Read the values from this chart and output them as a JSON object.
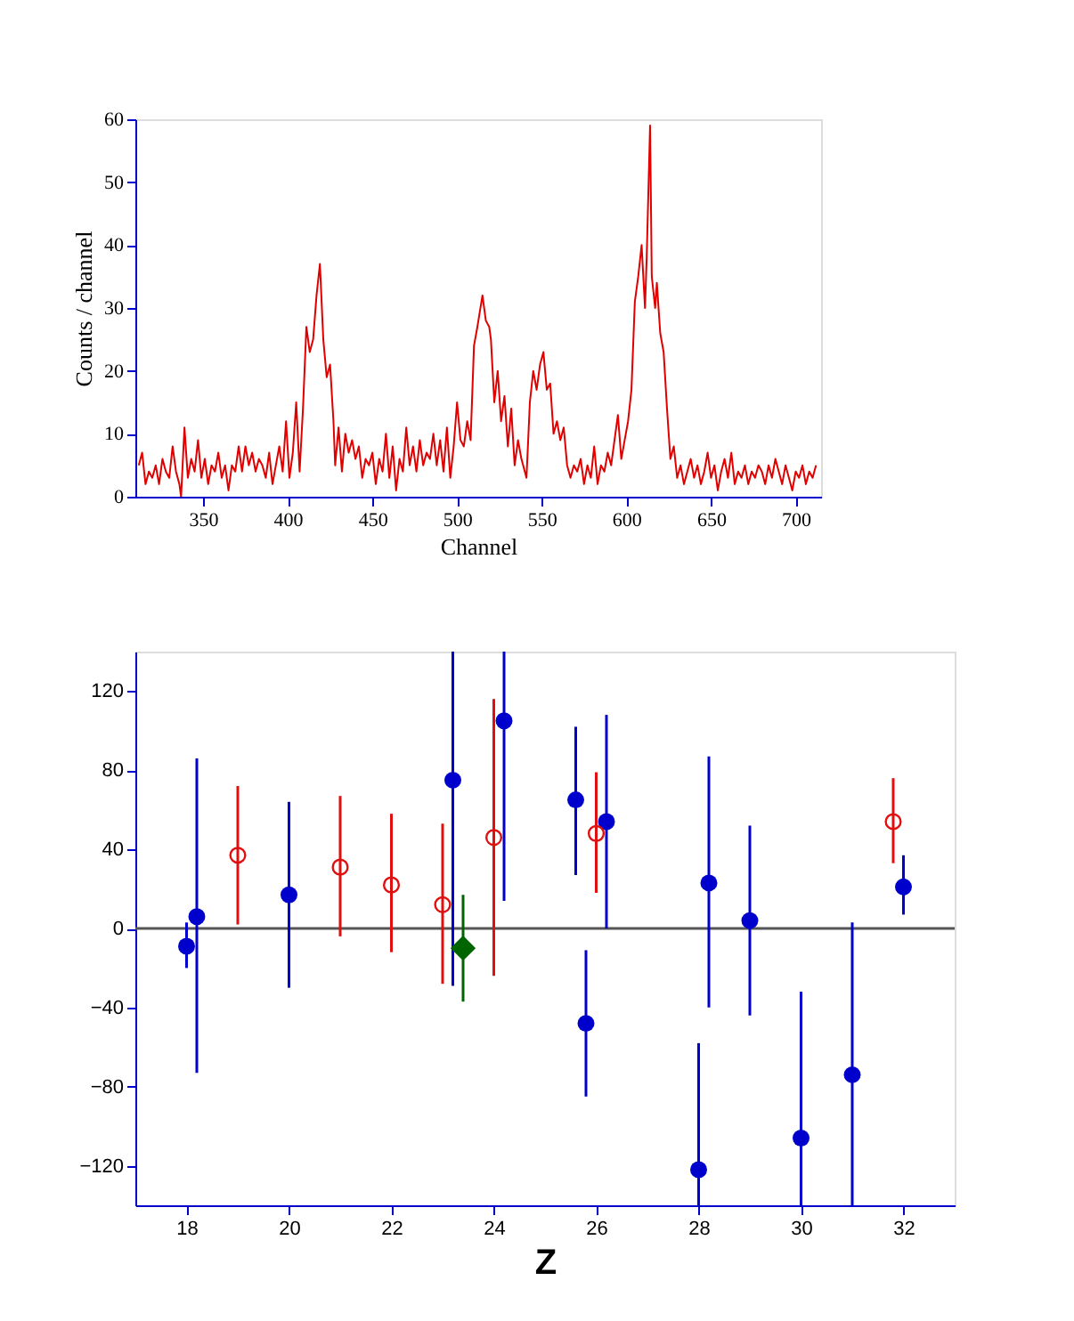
{
  "chart_data": [
    {
      "type": "line",
      "xlabel": "Channel",
      "ylabel": "Counts / channel",
      "xlim": [
        310,
        715
      ],
      "ylim": [
        0,
        60
      ],
      "xticks": [
        350,
        400,
        450,
        500,
        550,
        600,
        650,
        700
      ],
      "yticks": [
        0,
        10,
        20,
        30,
        40,
        50,
        60
      ],
      "grid": false,
      "marker": "none",
      "line_style": "solid",
      "series": [
        {
          "color": "#e00000",
          "x": [
            312,
            314,
            316,
            318,
            320,
            322,
            324,
            326,
            328,
            330,
            332,
            334,
            336,
            337,
            339,
            341,
            343,
            345,
            347,
            349,
            351,
            353,
            355,
            357,
            359,
            361,
            363,
            365,
            367,
            369,
            371,
            373,
            375,
            377,
            379,
            381,
            383,
            385,
            387,
            389,
            391,
            393,
            395,
            397,
            399,
            401,
            403,
            405,
            407,
            409,
            411,
            413,
            415,
            417,
            419,
            421,
            423,
            425,
            427,
            428,
            430,
            432,
            434,
            436,
            438,
            440,
            442,
            444,
            446,
            448,
            450,
            452,
            454,
            456,
            458,
            460,
            462,
            464,
            466,
            468,
            470,
            472,
            474,
            476,
            478,
            480,
            482,
            484,
            486,
            488,
            490,
            492,
            494,
            496,
            498,
            500,
            502,
            504,
            506,
            508,
            510,
            512,
            515,
            517,
            519,
            520,
            522,
            524,
            526,
            528,
            530,
            532,
            534,
            536,
            538,
            541,
            543,
            545,
            547,
            549,
            551,
            553,
            555,
            557,
            559,
            561,
            563,
            565,
            567,
            569,
            571,
            573,
            575,
            577,
            579,
            581,
            583,
            585,
            587,
            589,
            591,
            593,
            595,
            597,
            599,
            601,
            603,
            605,
            607,
            609,
            611,
            612,
            614,
            615,
            617,
            618,
            620,
            622,
            624,
            626,
            628,
            630,
            632,
            634,
            636,
            638,
            640,
            642,
            644,
            646,
            648,
            650,
            652,
            654,
            656,
            658,
            660,
            662,
            664,
            666,
            668,
            670,
            672,
            674,
            676,
            678,
            680,
            682,
            684,
            686,
            688,
            690,
            692,
            694,
            696,
            698,
            700,
            702,
            704,
            706,
            708,
            710,
            712
          ],
          "values": [
            5,
            7,
            2,
            4,
            3,
            5,
            2,
            6,
            4,
            3,
            8,
            4,
            2,
            0,
            11,
            3,
            6,
            4,
            9,
            3,
            6,
            2,
            5,
            4,
            7,
            3,
            5,
            1,
            5,
            4,
            8,
            4,
            8,
            5,
            7,
            4,
            6,
            5,
            3,
            7,
            2,
            5,
            8,
            4,
            12,
            3,
            7,
            15,
            4,
            14,
            27,
            23,
            25,
            32,
            37,
            25,
            19,
            21,
            12,
            5,
            11,
            4,
            10,
            7,
            9,
            6,
            8,
            3,
            6,
            5,
            7,
            2,
            6,
            4,
            10,
            3,
            8,
            1,
            6,
            4,
            11,
            5,
            8,
            4,
            9,
            5,
            7,
            6,
            10,
            5,
            9,
            4,
            11,
            3,
            8,
            15,
            9,
            8,
            12,
            9,
            24,
            27,
            32,
            28,
            27,
            25,
            15,
            20,
            12,
            16,
            8,
            14,
            5,
            9,
            6,
            3,
            15,
            20,
            17,
            21,
            23,
            17,
            18,
            10,
            12,
            9,
            11,
            5,
            3,
            5,
            4,
            6,
            2,
            5,
            3,
            8,
            2,
            5,
            4,
            7,
            5,
            9,
            13,
            6,
            9,
            12,
            17,
            31,
            35,
            40,
            30,
            38,
            59,
            35,
            30,
            34,
            26,
            23,
            14,
            6,
            8,
            3,
            5,
            2,
            4,
            6,
            3,
            5,
            2,
            4,
            7,
            3,
            5,
            1,
            4,
            6,
            3,
            7,
            2,
            4,
            3,
            5,
            2,
            4,
            3,
            5,
            4,
            2,
            5,
            3,
            6,
            4,
            2,
            5,
            3,
            1,
            4,
            3,
            5,
            2,
            4,
            3,
            5
          ]
        }
      ]
    },
    {
      "type": "scatter",
      "xlabel": "Z",
      "xlim": [
        17,
        33
      ],
      "ylim": [
        -140,
        140
      ],
      "xticks": [
        18,
        20,
        22,
        24,
        26,
        28,
        30,
        32
      ],
      "yticks": [
        -120,
        -80,
        -40,
        0,
        40,
        80,
        120
      ],
      "grid": false,
      "ref_lines": [
        {
          "axis": "y",
          "value": 0,
          "color": "#555555"
        }
      ],
      "series": [
        {
          "color": "#0000cc",
          "marker": "circle",
          "x": [
            18,
            18.2,
            20,
            23.2,
            24.2,
            25.6,
            25.8,
            26.2,
            28,
            28.2,
            29,
            30,
            31,
            32
          ],
          "values": [
            -9,
            6,
            17,
            75,
            105,
            65,
            -48,
            54,
            -122,
            23,
            4,
            -106,
            -74,
            21
          ],
          "errors": [
            [
              -20,
              3
            ],
            [
              -73,
              86
            ],
            [
              -30,
              64
            ],
            [
              -29,
              140
            ],
            [
              14,
              140
            ],
            [
              27,
              102
            ],
            [
              -85,
              -11
            ],
            [
              0,
              108
            ],
            [
              -140,
              -58
            ],
            [
              -40,
              87
            ],
            [
              -44,
              52
            ],
            [
              -140,
              -32
            ],
            [
              -140,
              3
            ],
            [
              7,
              37
            ]
          ]
        },
        {
          "color": "#e01010",
          "marker": "circle",
          "x": [
            19,
            21,
            22,
            23,
            24,
            26,
            31.8
          ],
          "values": [
            37,
            31,
            22,
            12,
            46,
            48,
            54
          ],
          "errors": [
            [
              2,
              72
            ],
            [
              -4,
              67
            ],
            [
              -12,
              58
            ],
            [
              -28,
              53
            ],
            [
              -24,
              116
            ],
            [
              18,
              79
            ],
            [
              33,
              76
            ]
          ]
        },
        {
          "color": "#006400",
          "marker": "diamond",
          "x": [
            23.4
          ],
          "values": [
            -10
          ],
          "errors": [
            [
              -37,
              17
            ]
          ]
        }
      ]
    }
  ]
}
